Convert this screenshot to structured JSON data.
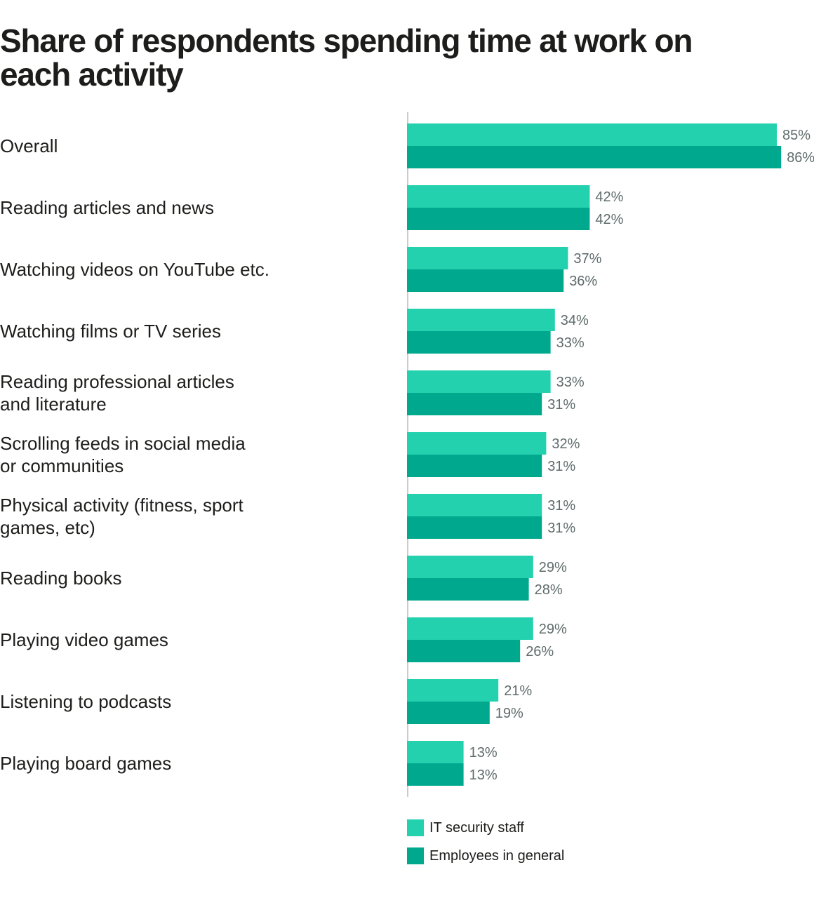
{
  "title": "Share of respondents spending time at work on each activity",
  "chart_data": {
    "type": "bar",
    "orientation": "horizontal",
    "title": "Share of respondents spending time at work on each activity",
    "categories": [
      [
        "Overall"
      ],
      [
        "Reading articles and news"
      ],
      [
        "Watching videos on YouTube etc."
      ],
      [
        "Watching films or TV series"
      ],
      [
        "Reading professional articles",
        "and literature"
      ],
      [
        "Scrolling feeds in social media",
        "or communities"
      ],
      [
        "Physical activity (fitness, sport",
        "games, etc)"
      ],
      [
        "Reading books"
      ],
      [
        "Playing video games"
      ],
      [
        "Listening to podcasts"
      ],
      [
        "Playing board games"
      ]
    ],
    "series": [
      {
        "name": "IT security staff",
        "color": "#23d1ae",
        "values": [
          85,
          42,
          37,
          34,
          33,
          32,
          31,
          29,
          29,
          21,
          13
        ]
      },
      {
        "name": "Employees in general",
        "color": "#00a88e",
        "values": [
          86,
          42,
          36,
          33,
          31,
          31,
          31,
          28,
          26,
          19,
          13
        ]
      }
    ],
    "value_suffix": "%",
    "xlim": [
      0,
      86
    ],
    "grid": false,
    "legend_position": "bottom"
  }
}
